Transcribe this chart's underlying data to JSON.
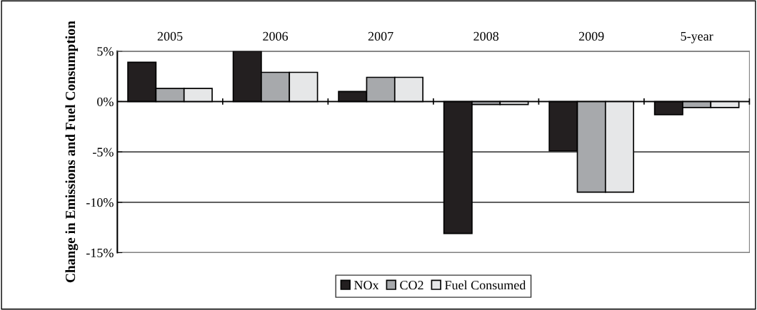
{
  "chart_data": {
    "type": "bar",
    "ylabel": "Change in Emissions and Fuel Consumption",
    "categories": [
      "2005",
      "2006",
      "2007",
      "2008",
      "2009",
      "5-year"
    ],
    "series": [
      {
        "name": "NOx",
        "color": "#231f20",
        "values": [
          3.9,
          5.0,
          1.0,
          -13.1,
          -4.9,
          -1.3
        ]
      },
      {
        "name": "CO2",
        "color": "#a7a9ac",
        "values": [
          1.3,
          2.9,
          2.4,
          -0.3,
          -9.0,
          -0.6
        ]
      },
      {
        "name": "Fuel Consumed",
        "color": "#e6e7e8",
        "values": [
          1.3,
          2.9,
          2.4,
          -0.3,
          -9.0,
          -0.6
        ]
      }
    ],
    "ylim": [
      -15,
      5
    ],
    "yticks": [
      {
        "value": -15,
        "label": "-15%"
      },
      {
        "value": -10,
        "label": "-10%"
      },
      {
        "value": -5,
        "label": "-5%"
      },
      {
        "value": 0,
        "label": "0%"
      },
      {
        "value": 5,
        "label": "5%"
      }
    ],
    "grid": "y",
    "legend": "bottom"
  }
}
